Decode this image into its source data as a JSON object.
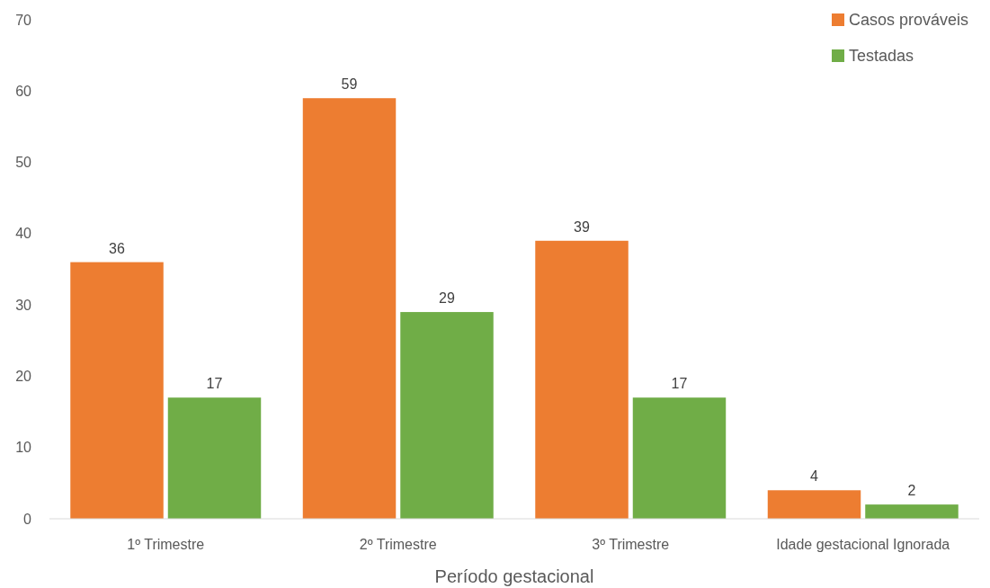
{
  "chart_data": {
    "type": "bar",
    "xlabel": "Período gestacional",
    "categories": [
      "1º Trimestre",
      "2º Trimestre",
      "3º Trimestre",
      "Idade gestacional Ignorada"
    ],
    "series": [
      {
        "name": "Casos prováveis",
        "color": "#ed7d31",
        "values": [
          36,
          59,
          39,
          4
        ]
      },
      {
        "name": "Testadas",
        "color": "#70ad47",
        "values": [
          17,
          29,
          17,
          2
        ]
      }
    ],
    "ylim": [
      0,
      70
    ],
    "yticks": [
      0,
      10,
      20,
      30,
      40,
      50,
      60,
      70
    ],
    "grid": false,
    "legend": "top right",
    "data_labels": true
  }
}
